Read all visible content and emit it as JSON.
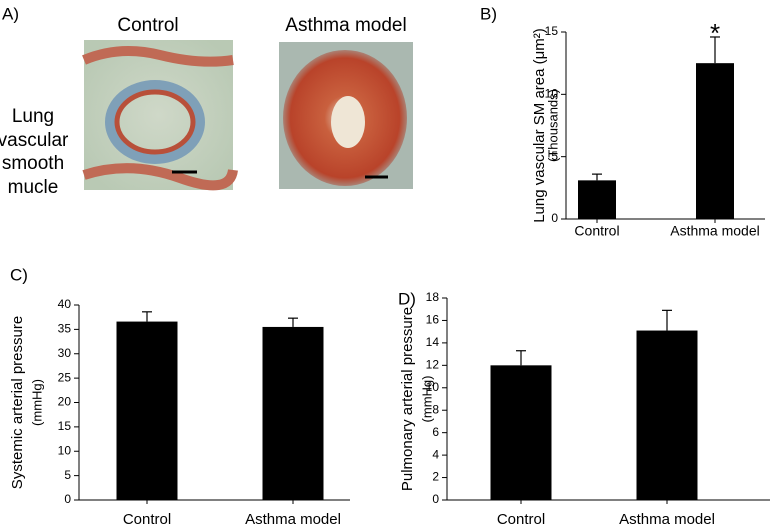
{
  "panel_a": {
    "label": "A)",
    "control_title": "Control",
    "asthma_title": "Asthma model",
    "side_lines": [
      "Lung",
      "vascular",
      "smooth",
      "mucle"
    ]
  },
  "chart_data": [
    {
      "type": "bar",
      "panel_label": "B)",
      "y_label": [
        "Lung vascular SM area (μm²)",
        "(Thousands)"
      ],
      "categories": [
        "Control",
        "Asthma model"
      ],
      "values": [
        3.1,
        12.5
      ],
      "errors": [
        0.5,
        2.1
      ],
      "color": "#000000",
      "ylim": [
        0,
        15
      ],
      "yticks": [
        0,
        5,
        10,
        15
      ],
      "annotations": [
        null,
        "*"
      ]
    },
    {
      "type": "bar",
      "panel_label": "C)",
      "y_label": [
        "Systemic arterial pressure",
        "(mmHg)"
      ],
      "categories": [
        "Control",
        "Asthma model"
      ],
      "values": [
        36.6,
        35.5
      ],
      "errors": [
        2.0,
        1.8
      ],
      "color": "#000000",
      "ylim": [
        0,
        40
      ],
      "yticks": [
        0,
        5,
        10,
        15,
        20,
        25,
        30,
        35,
        40
      ]
    },
    {
      "type": "bar",
      "panel_label": "D)",
      "y_label": [
        "Pulmonary arterial pressure",
        "(mmHg)"
      ],
      "categories": [
        "Control",
        "Asthma model"
      ],
      "values": [
        12.0,
        15.1
      ],
      "errors": [
        1.3,
        1.8
      ],
      "color": "#000000",
      "ylim": [
        0,
        18
      ],
      "yticks": [
        0,
        2,
        4,
        6,
        8,
        10,
        12,
        14,
        16,
        18
      ]
    }
  ]
}
